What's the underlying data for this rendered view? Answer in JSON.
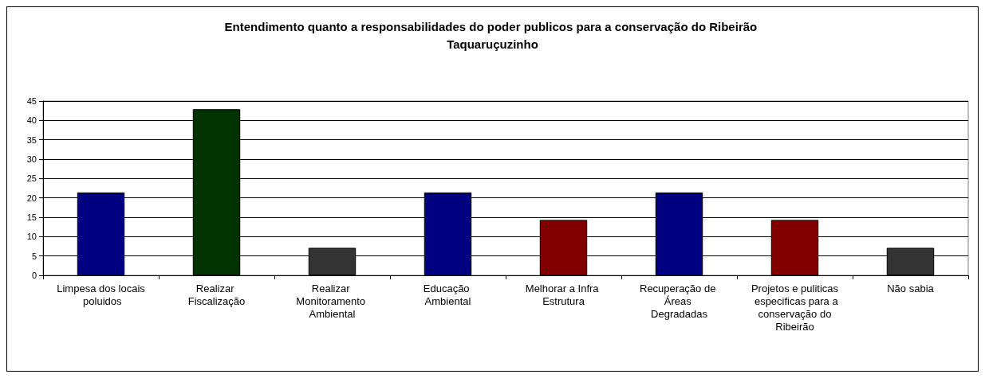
{
  "chart_data": {
    "type": "bar",
    "title": "Entendimento quanto a responsabilidades do poder publicos para a conservação do Ribeirão Taquaruçuzinho",
    "categories": [
      "Limpesa dos locais poluidos",
      "Realizar Fiscalização",
      "Realizar Monitoramento Ambiental",
      "Educação Ambiental",
      "Melhorar a Infra Estrutura",
      "Recuperação de Áreas Degradadas",
      "Projetos e puliticas especificas para a conservação do Ribeirão",
      "Não sabia"
    ],
    "values": [
      21.4,
      42.9,
      7.1,
      21.4,
      14.3,
      21.4,
      14.3,
      7.1
    ],
    "colors": [
      "#000080",
      "#003300",
      "#333333",
      "#000080",
      "#800000",
      "#000080",
      "#800000",
      "#333333"
    ],
    "ylim": [
      0,
      45
    ],
    "yticks": [
      0,
      5,
      10,
      15,
      20,
      25,
      30,
      35,
      40,
      45
    ],
    "grid": "y"
  }
}
